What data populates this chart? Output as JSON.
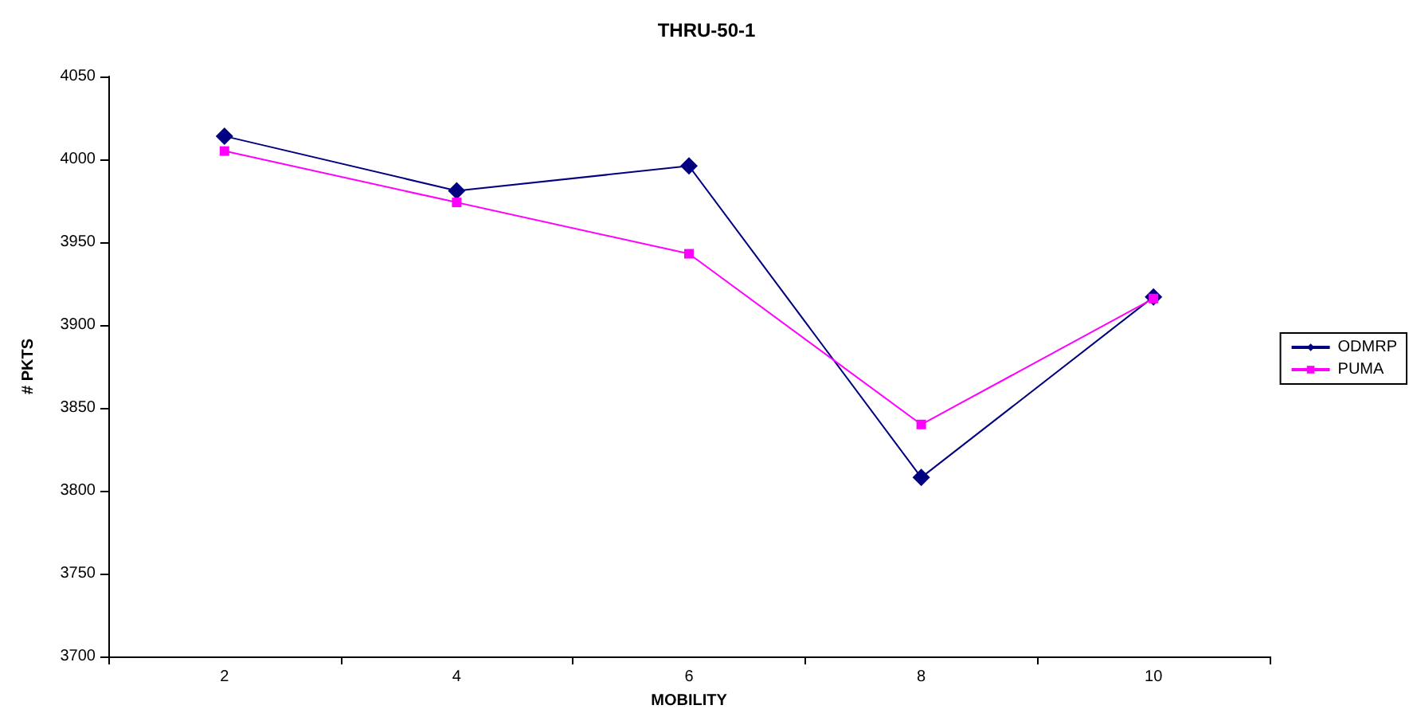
{
  "chart_data": {
    "type": "line",
    "title": "THRU-50-1",
    "xlabel": "MOBILITY",
    "ylabel": "# PKTS",
    "categories": [
      "2",
      "4",
      "6",
      "8",
      "10"
    ],
    "series": [
      {
        "name": "ODMRP",
        "color": "#000080",
        "marker": "diamond",
        "values": [
          4014,
          3981,
          3996,
          3808,
          3917
        ]
      },
      {
        "name": "PUMA",
        "color": "#ff00ff",
        "marker": "square",
        "values": [
          4005,
          3974,
          3943,
          3840,
          3916
        ]
      }
    ],
    "ylim": [
      3700,
      4050
    ],
    "yticks": [
      3700,
      3750,
      3800,
      3850,
      3900,
      3950,
      4000,
      4050
    ],
    "grid": false,
    "legend": "right"
  }
}
